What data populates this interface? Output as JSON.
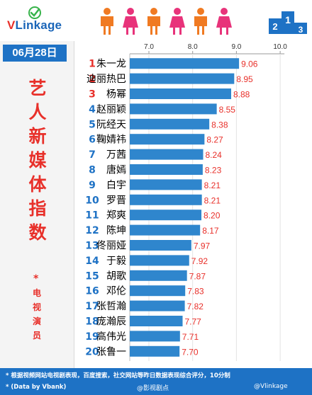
{
  "brand": {
    "logo_v": "V",
    "logo_rest": "Linkage"
  },
  "date": "06月28日",
  "title_chars": [
    "艺",
    "人",
    "新",
    "媒",
    "体",
    "指",
    "数"
  ],
  "subtitle_star": "*",
  "subtitle_chars": [
    "电",
    "视",
    "演",
    "员"
  ],
  "footer": {
    "note": "* 根据视频网站电视剧表现，百度搜索，社交网站等昨日数据表现综合评分，10分制",
    "source": "* (Data by Vbank)",
    "watermark1": "@影视剧点",
    "watermark2": "@Vlinkage"
  },
  "colors": {
    "bar": "#2f86cd",
    "rank_red": "#e8302a",
    "rank_blue": "#1e72c5",
    "value": "#e8302a",
    "header_blue": "#1e72c5",
    "person_orange": "#f07a22",
    "person_pink": "#e8337a"
  },
  "chart_data": {
    "type": "bar",
    "orientation": "horizontal",
    "xlim": [
      7.0,
      10.0
    ],
    "x_ticks": [
      "7.0",
      "8.0",
      "9.0",
      "10.0"
    ],
    "grid": true,
    "ranks": [
      "1",
      "2",
      "3",
      "4",
      "5",
      "6",
      "7",
      "8",
      "9",
      "10",
      "11",
      "12",
      "13",
      "14",
      "15",
      "16",
      "17",
      "18",
      "19",
      "20"
    ],
    "categories": [
      "朱一龙",
      "迪丽热巴",
      "杨幂",
      "赵丽颖",
      "阮经天",
      "鞠婧祎",
      "万茜",
      "唐嫣",
      "白宇",
      "罗晋",
      "郑爽",
      "陈坤",
      "佟丽娅",
      "于毅",
      "胡歌",
      "邓伦",
      "张哲瀚",
      "庞瀚辰",
      "高伟光",
      "张鲁一"
    ],
    "values": [
      9.06,
      8.95,
      8.88,
      8.55,
      8.38,
      8.27,
      8.24,
      8.23,
      8.21,
      8.21,
      8.2,
      8.17,
      7.97,
      7.92,
      7.87,
      7.83,
      7.82,
      7.77,
      7.71,
      7.7
    ],
    "value_labels": [
      "9.06",
      "8.95",
      "8.88",
      "8.55",
      "8.38",
      "8.27",
      "8.24",
      "8.23",
      "8.21",
      "8.21",
      "8.20",
      "8.17",
      "7.97",
      "7.92",
      "7.87",
      "7.83",
      "7.82",
      "7.77",
      "7.71",
      "7.70"
    ]
  }
}
